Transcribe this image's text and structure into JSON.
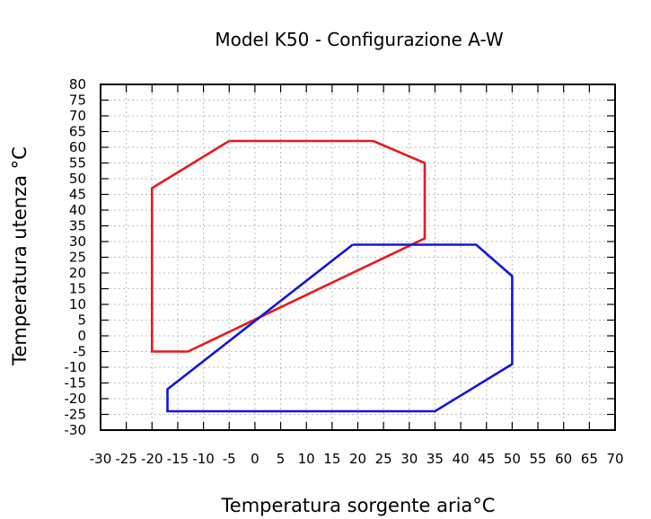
{
  "chart_data": {
    "type": "line",
    "title": "Model K50 - Configurazione A-W",
    "xlabel": "Temperatura sorgente aria°C",
    "ylabel": "Temperatura utenza °C",
    "xlim": [
      -30,
      70
    ],
    "ylim": [
      -30,
      80
    ],
    "x_ticks": [
      -30,
      -25,
      -20,
      -15,
      -10,
      -5,
      0,
      5,
      10,
      15,
      20,
      25,
      30,
      35,
      40,
      45,
      50,
      55,
      60,
      65,
      70
    ],
    "x_tick_labels": [
      "-30",
      "-25",
      "-20",
      "-15",
      "-10",
      "-5",
      "0",
      "5",
      "10",
      "15",
      "20",
      "25",
      "30",
      "35",
      "40",
      "45",
      "50",
      "55",
      "60",
      "65",
      "70"
    ],
    "y_ticks": [
      -30,
      -25,
      -20,
      -15,
      -10,
      -5,
      0,
      5,
      10,
      15,
      20,
      25,
      30,
      35,
      40,
      45,
      50,
      55,
      60,
      65,
      70,
      75,
      80
    ],
    "y_tick_labels": [
      "-30",
      "-25",
      "-20",
      "-15",
      "-10",
      "-5",
      "0",
      "5",
      "10",
      "15",
      "20",
      "25",
      "30",
      "35",
      "40",
      "45",
      "50",
      "55",
      "60",
      "65",
      "70",
      "75",
      "80"
    ],
    "grid": true,
    "legend": "none",
    "series": [
      {
        "color": "#e8191c",
        "x": [
          -5,
          23,
          33,
          33,
          -13,
          -20,
          -20,
          -5
        ],
        "y": [
          62,
          62,
          55,
          31,
          -5,
          -5,
          47,
          62
        ]
      },
      {
        "color": "#1414e0",
        "x": [
          19,
          43,
          50,
          50,
          35,
          -17,
          -17,
          19
        ],
        "y": [
          29,
          29,
          19,
          -9,
          -24,
          -24,
          -17,
          29
        ]
      }
    ]
  }
}
